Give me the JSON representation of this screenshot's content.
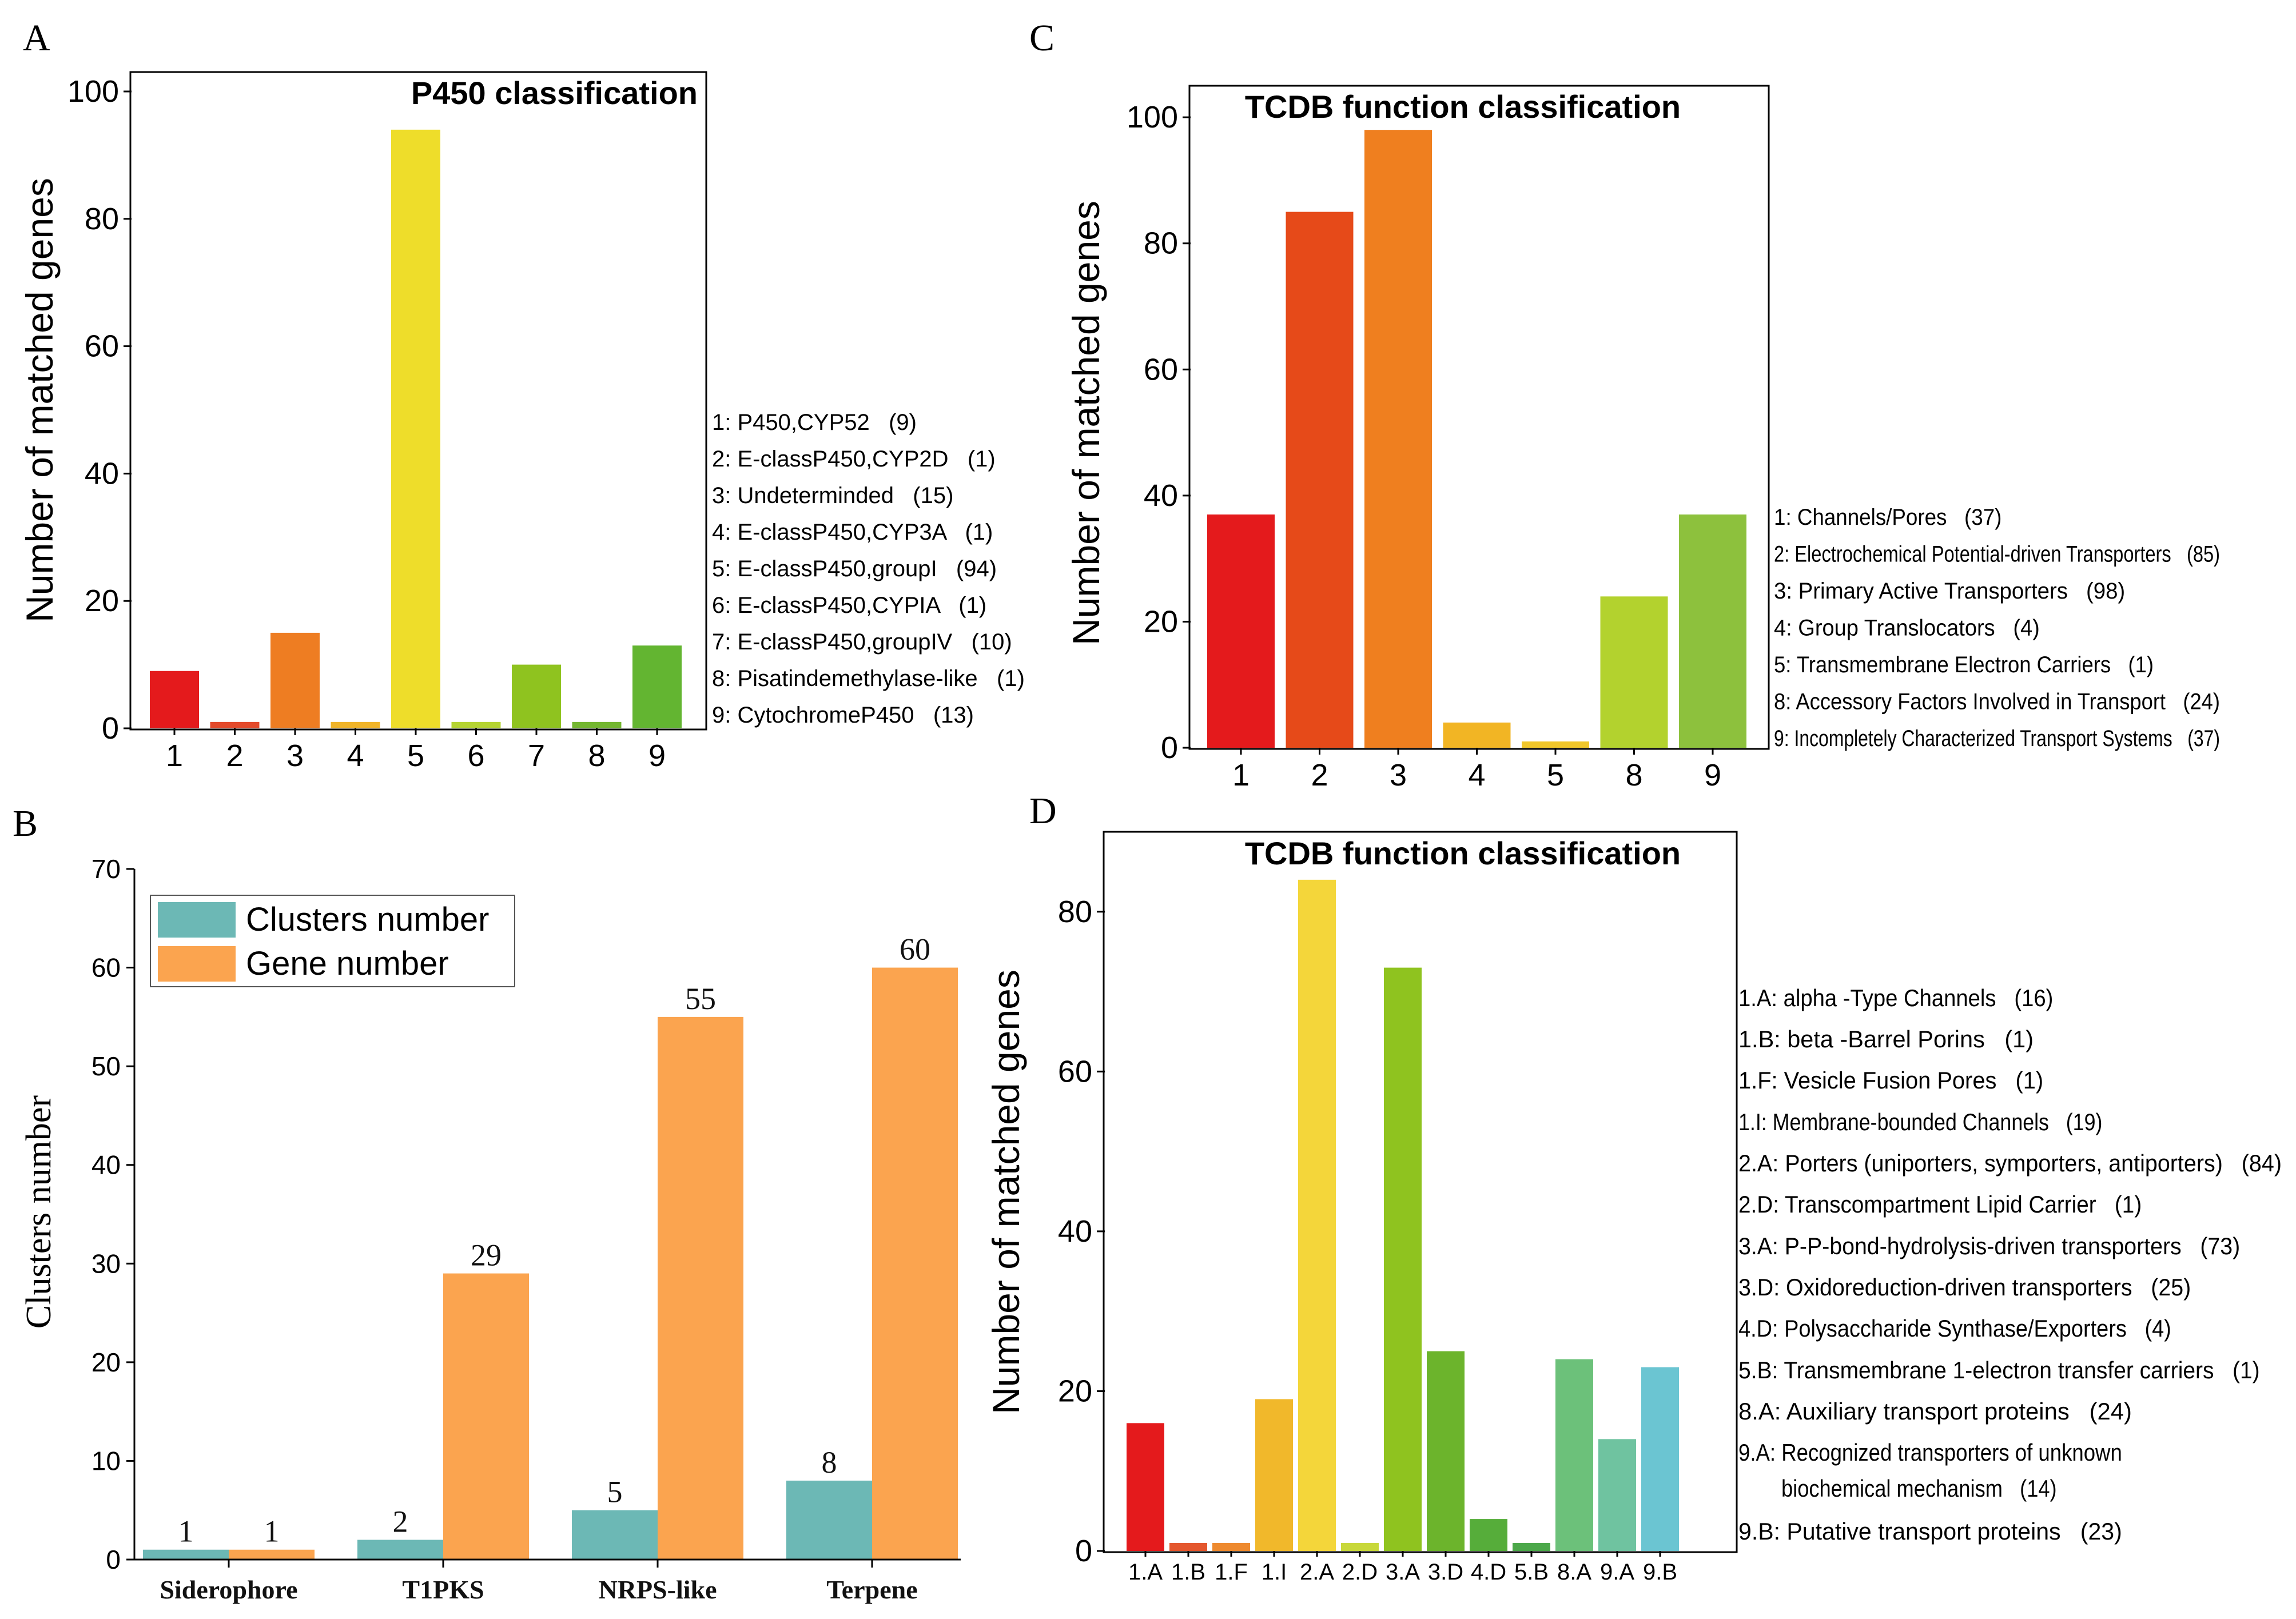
{
  "figure": {
    "panels": [
      {
        "id": "A",
        "chart_data": {
          "type": "bar",
          "title": "P450 classification",
          "xlabel": "",
          "ylabel": "Number of matched genes",
          "ylim": [
            0,
            100
          ],
          "yticks": [
            0,
            20,
            40,
            60,
            80,
            100
          ],
          "categories": [
            "1",
            "2",
            "3",
            "4",
            "5",
            "6",
            "7",
            "8",
            "9"
          ],
          "values": [
            9,
            1,
            15,
            1,
            94,
            1,
            10,
            1,
            13
          ],
          "colors": [
            "#e41a1c",
            "#e34a2b",
            "#ee7d22",
            "#f0b429",
            "#eedd2a",
            "#b5d432",
            "#8fc31f",
            "#74b730",
            "#63b531"
          ],
          "legend": [
            "1: P450,CYP52   (9)",
            "2: E-classP450,CYP2D   (1)",
            "3: Undeterminded   (15)",
            "4: E-classP450,CYP3A   (1)",
            "5: E-classP450,groupI   (94)",
            "6: E-classP450,CYPIA   (1)",
            "7: E-classP450,groupIV   (10)",
            "8: Pisatindemethylase-like   (1)",
            "9: CytochromeP450   (13)"
          ]
        }
      },
      {
        "id": "B",
        "chart_data": {
          "type": "bar",
          "title": "",
          "xlabel": "",
          "ylabel": "Clusters number",
          "ylim": [
            0,
            70
          ],
          "yticks": [
            0,
            10,
            20,
            30,
            40,
            50,
            60,
            70
          ],
          "categories": [
            "Siderophore",
            "T1PKS",
            "NRPS-like",
            "Terpene"
          ],
          "series": [
            {
              "name": "Clusters number",
              "values": [
                1,
                2,
                5,
                8
              ],
              "color": "#6cb8b5"
            },
            {
              "name": "Gene number",
              "values": [
                1,
                29,
                55,
                60
              ],
              "color": "#fba44f"
            }
          ],
          "legend_position": "top-left"
        }
      },
      {
        "id": "C",
        "chart_data": {
          "type": "bar",
          "title": "TCDB function classification",
          "xlabel": "",
          "ylabel": "Number of matched genes",
          "ylim": [
            0,
            105
          ],
          "yticks": [
            0,
            20,
            40,
            60,
            80,
            100
          ],
          "categories": [
            "1",
            "2",
            "3",
            "4",
            "5",
            "8",
            "9"
          ],
          "values": [
            37,
            85,
            98,
            4,
            1,
            24,
            37
          ],
          "colors": [
            "#e41a1c",
            "#e64a19",
            "#ef7f1f",
            "#f2b524",
            "#f0c62a",
            "#b3d22e",
            "#8dc13d"
          ],
          "legend": [
            "1: Channels/Pores   (37)",
            "2: Electrochemical Potential-driven Transporters   (85)",
            "3: Primary Active Transporters   (98)",
            "4: Group Translocators   (4)",
            "5: Transmembrane Electron Carriers   (1)",
            "8: Accessory Factors Involved in Transport   (24)",
            "9: Incompletely Characterized Transport Systems   (37)"
          ]
        }
      },
      {
        "id": "D",
        "chart_data": {
          "type": "bar",
          "title": "TCDB function classification",
          "xlabel": "",
          "ylabel": "Number of matched genes",
          "ylim": [
            0,
            90
          ],
          "yticks": [
            0,
            20,
            40,
            60,
            80
          ],
          "categories": [
            "1.A",
            "1.B",
            "1.F",
            "1.I",
            "2.A",
            "2.D",
            "3.A",
            "3.D",
            "4.D",
            "5.B",
            "8.A",
            "9.A",
            "9.B"
          ],
          "values": [
            16,
            1,
            1,
            19,
            84,
            1,
            73,
            25,
            4,
            1,
            24,
            14,
            23
          ],
          "colors": [
            "#e41a1c",
            "#e4572e",
            "#ee8a2f",
            "#f1b82b",
            "#f4d63a",
            "#c8d83a",
            "#8fc31f",
            "#6cb42c",
            "#56ad3a",
            "#4ca84a",
            "#6cc17a",
            "#6fc3a0",
            "#6bc5d2"
          ],
          "legend": [
            "1.A: alpha -Type Channels   (16)",
            "1.B: beta -Barrel Porins   (1)",
            "1.F: Vesicle Fusion Pores   (1)",
            "1.I: Membrane-bounded Channels   (19)",
            "2.A: Porters (uniporters, symporters, antiporters)   (84)",
            "2.D: Transcompartment Lipid Carrier   (1)",
            "3.A: P-P-bond-hydrolysis-driven transporters   (73)",
            "3.D: Oxidoreduction-driven transporters   (25)",
            "4.D: Polysaccharide Synthase/Exporters   (4)",
            "5.B: Transmembrane 1-electron transfer carriers   (1)",
            "8.A: Auxiliary transport proteins   (24)",
            "9.A: Recognized transporters of unknown",
            "biochemical mechanism   (14)",
            "9.B: Putative transport proteins   (23)"
          ]
        }
      }
    ]
  }
}
